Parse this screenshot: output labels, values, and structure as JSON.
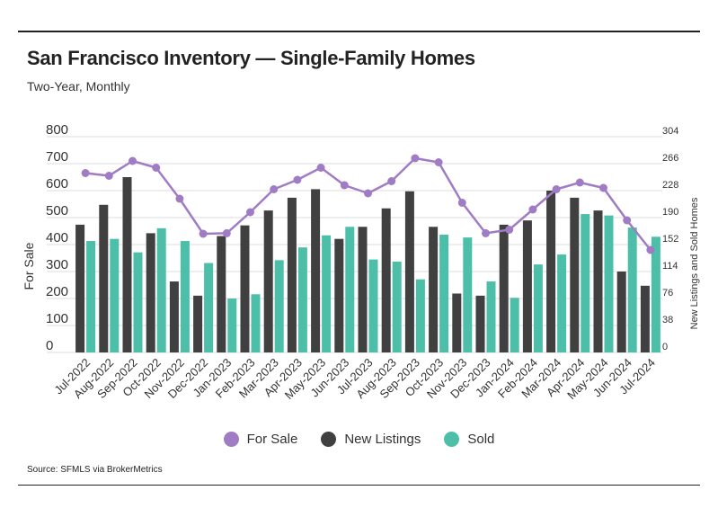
{
  "header": {
    "title": "San Francisco Inventory — Single-Family Homes",
    "subtitle": "Two-Year, Monthly"
  },
  "footer": {
    "source": "Source:  SFMLS via BrokerMetrics"
  },
  "colors": {
    "for_sale": "#a07cc5",
    "new_listings": "#404040",
    "sold": "#4dbfa8",
    "grid": "#dddddd"
  },
  "chart_data": {
    "type": "bar",
    "title": "San Francisco Inventory — Single-Family Homes",
    "subtitle": "Two-Year, Monthly",
    "ylabel": "For Sale",
    "y2label": "New Listings and Sold Homes",
    "ylim": [
      0,
      800
    ],
    "y2lim": [
      0,
      304
    ],
    "yticks": [
      "800",
      "700",
      "600",
      "500",
      "400",
      "300",
      "200",
      "100",
      "0"
    ],
    "y2ticks": [
      "304",
      "266",
      "228",
      "190",
      "152",
      "114",
      "76",
      "38",
      "0"
    ],
    "categories": [
      "Jul-2022",
      "Aug-2022",
      "Sep-2022",
      "Oct-2022",
      "Nov-2022",
      "Dec-2022",
      "Jan-2023",
      "Feb-2023",
      "Mar-2023",
      "Apr-2023",
      "May-2023",
      "Jun-2023",
      "Jul-2023",
      "Aug-2023",
      "Sep-2023",
      "Oct-2023",
      "Nov-2023",
      "Dec-2023",
      "Jan-2024",
      "Feb-2024",
      "Mar-2024",
      "Apr-2024",
      "May-2024",
      "Jun-2024",
      "Jul-2024"
    ],
    "series": [
      {
        "name": "For Sale",
        "type": "line",
        "axis": "left",
        "values": [
          665,
          655,
          710,
          685,
          570,
          440,
          442,
          520,
          605,
          640,
          685,
          620,
          590,
          635,
          720,
          705,
          555,
          442,
          455,
          530,
          605,
          630,
          610,
          490,
          380
        ]
      },
      {
        "name": "New Listings",
        "type": "bar",
        "axis": "right",
        "values": [
          180,
          208,
          247,
          168,
          100,
          80,
          164,
          179,
          200,
          218,
          230,
          160,
          177,
          203,
          227,
          177,
          83,
          80,
          180,
          186,
          228,
          218,
          200,
          114,
          94
        ]
      },
      {
        "name": "Sold",
        "type": "bar",
        "axis": "right",
        "values": [
          157,
          160,
          141,
          175,
          157,
          126,
          76,
          82,
          130,
          148,
          165,
          177,
          131,
          128,
          103,
          166,
          162,
          100,
          77,
          124,
          138,
          195,
          193,
          176,
          163
        ]
      }
    ],
    "legend": [
      "For Sale",
      "New Listings",
      "Sold"
    ],
    "legend_position": "bottom-center",
    "grid": true
  }
}
